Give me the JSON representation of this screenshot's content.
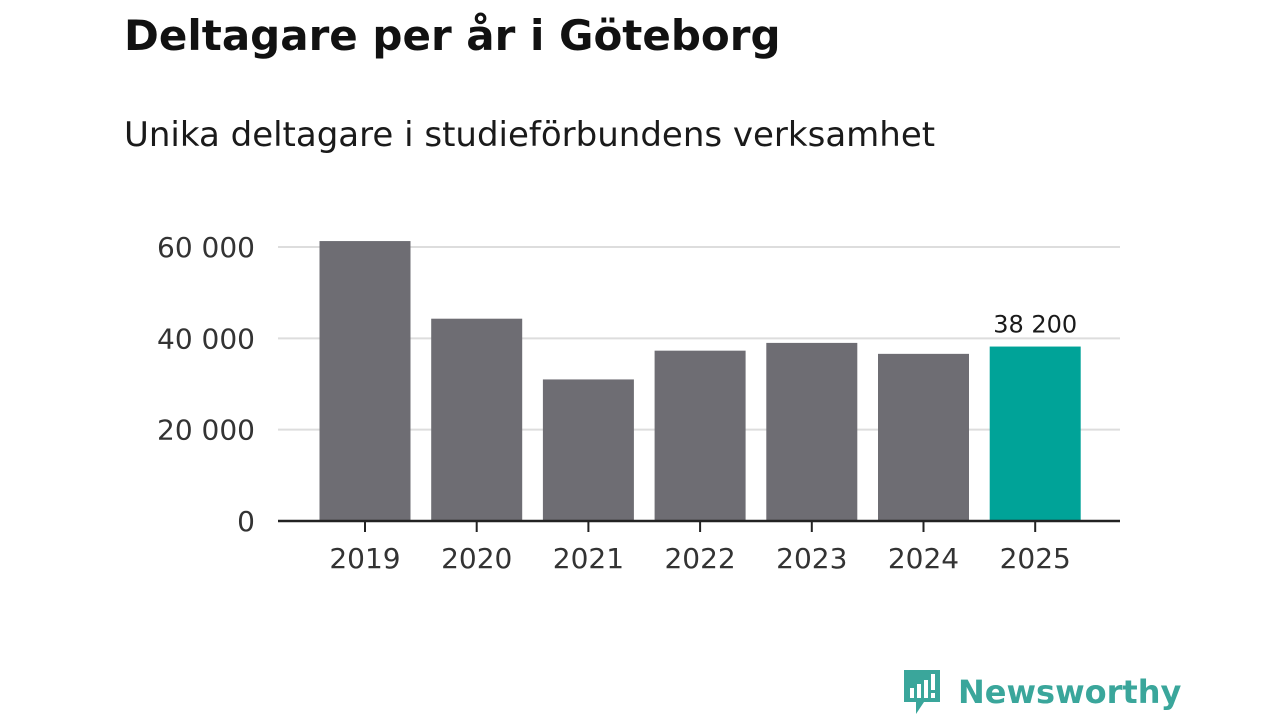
{
  "header": {
    "title": "Deltagare per år i Göteborg",
    "subtitle": "Unika deltagare i studieförbundens verksamhet"
  },
  "colors": {
    "bar": "#6e6d73",
    "highlight": "#00a398",
    "grid": "#dddddd",
    "axis": "#222222",
    "brand": "#3aa69b"
  },
  "chart_data": {
    "type": "bar",
    "title": "Deltagare per år i Göteborg",
    "subtitle": "Unika deltagare i studieförbundens verksamhet",
    "categories": [
      "2019",
      "2020",
      "2021",
      "2022",
      "2023",
      "2024",
      "2025"
    ],
    "values": [
      61300,
      44300,
      31000,
      37300,
      39000,
      36600,
      38200
    ],
    "highlight_index": 6,
    "value_labels": [
      {
        "index": 6,
        "text": "38 200"
      }
    ],
    "ylim": [
      0,
      60000
    ],
    "yticks": [
      0,
      20000,
      40000,
      60000
    ],
    "ytick_labels": [
      "0",
      "20 000",
      "40 000",
      "60 000"
    ],
    "grid": true,
    "xlabel": "",
    "ylabel": ""
  },
  "brand": {
    "name": "Newsworthy",
    "icon": "newsworthy-logo-icon"
  }
}
